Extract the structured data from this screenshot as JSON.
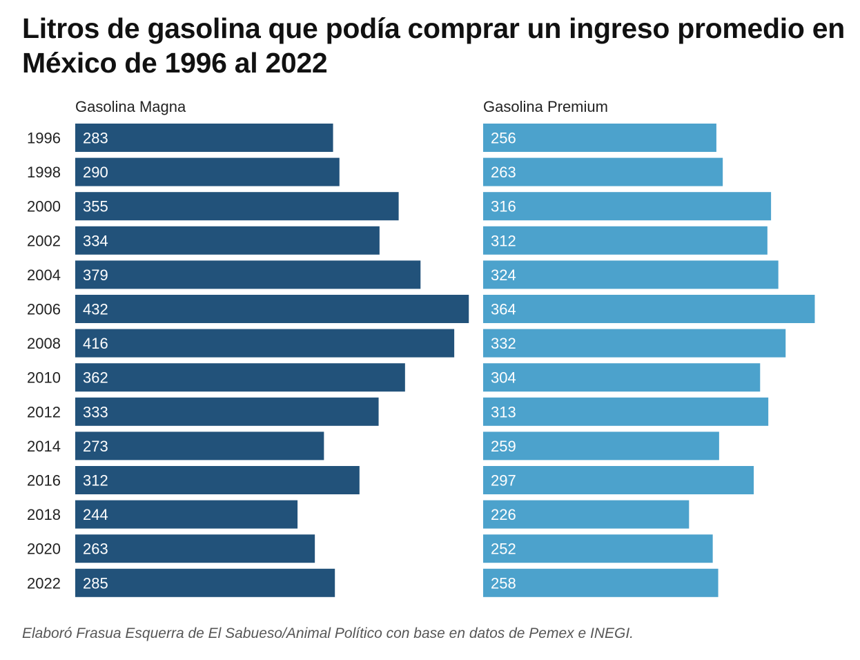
{
  "title": "Litros de gasolina que podía comprar un ingreso promedio en México de 1996 al 2022",
  "footer": "Elaboró Frasua Esquerra de El Sabueso/Animal Político con base en datos de Pemex e INEGI.",
  "chart_data": {
    "type": "bar",
    "orientation": "horizontal",
    "categories": [
      "1996",
      "1998",
      "2000",
      "2002",
      "2004",
      "2006",
      "2008",
      "2010",
      "2012",
      "2014",
      "2016",
      "2018",
      "2020",
      "2022"
    ],
    "series": [
      {
        "name": "Gasolina Magna",
        "color": "#22527a",
        "values": [
          283,
          290,
          355,
          334,
          379,
          432,
          416,
          362,
          333,
          273,
          312,
          244,
          263,
          285
        ]
      },
      {
        "name": "Gasolina Premium",
        "color": "#4ca2cc",
        "values": [
          256,
          263,
          316,
          312,
          324,
          364,
          332,
          304,
          313,
          259,
          297,
          226,
          252,
          258
        ]
      }
    ],
    "data_labels": true,
    "grid": false
  }
}
